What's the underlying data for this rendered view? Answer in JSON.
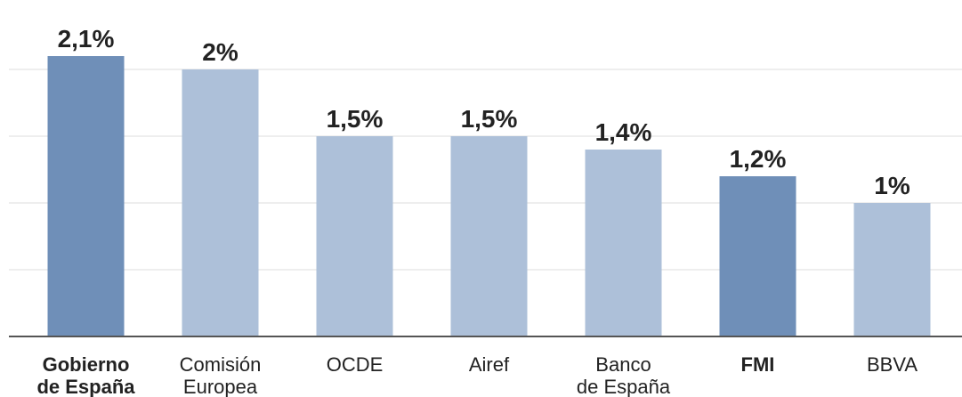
{
  "chart_data": {
    "type": "bar",
    "categories": [
      "Gobierno\nde España",
      "Comisión\nEuropea",
      "OCDE",
      "Airef",
      "Banco\nde España",
      "FMI",
      "BBVA"
    ],
    "values": [
      2.1,
      2,
      1.5,
      1.5,
      1.4,
      1.2,
      1
    ],
    "value_labels": [
      "2,1%",
      "2%",
      "1,5%",
      "1,5%",
      "1,4%",
      "1,2%",
      "1%"
    ],
    "highlighted": [
      true,
      false,
      false,
      false,
      false,
      true,
      false
    ],
    "color": "#adc0d9",
    "highlight_color": "#6f8fb8",
    "ylim": [
      0,
      2.5
    ],
    "yticks": [
      0,
      0.5,
      1,
      1.5,
      2
    ],
    "grid": true
  }
}
